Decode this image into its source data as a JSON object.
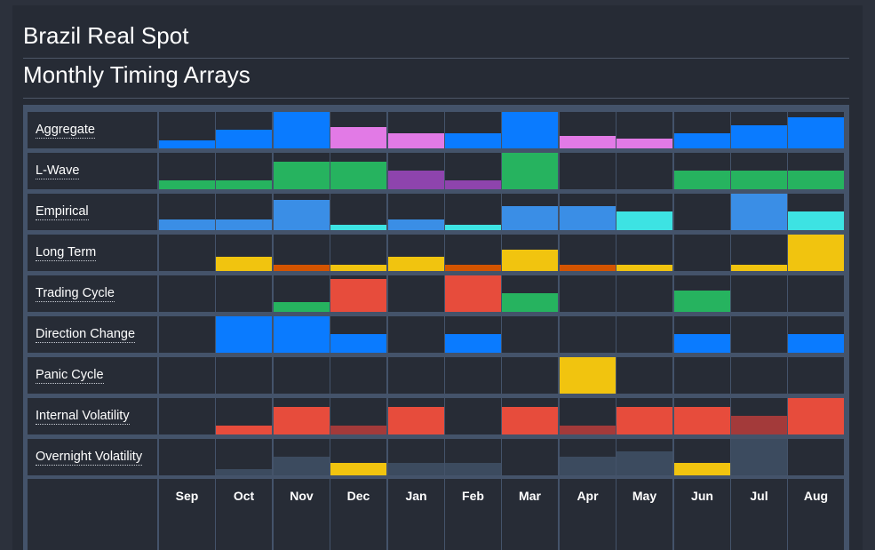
{
  "titles": {
    "instrument": "Brazil Real Spot",
    "report": "Monthly Timing Arrays"
  },
  "months": [
    "Sep",
    "Oct",
    "Nov",
    "Dec",
    "Jan",
    "Feb",
    "Mar",
    "Apr",
    "May",
    "Jun",
    "Jul",
    "Aug"
  ],
  "palette": {
    "blue": "#0a7bff",
    "pink": "#e27ae6",
    "green": "#26b35f",
    "purple": "#8e44ad",
    "sky": "#3a8ee6",
    "cyan": "#3de3e3",
    "yellow": "#f1c40f",
    "orange": "#d35400",
    "red": "#e74c3c",
    "darkred": "#a33a3a",
    "slate": "#3c4b5f"
  },
  "rows": [
    {
      "label": "Aggregate",
      "cells": [
        {
          "level": 0.22,
          "color": "blue"
        },
        {
          "level": 0.5,
          "color": "blue"
        },
        {
          "level": 1.0,
          "color": "blue"
        },
        {
          "level": 0.58,
          "color": "pink"
        },
        {
          "level": 0.42,
          "color": "pink"
        },
        {
          "level": 0.42,
          "color": "blue"
        },
        {
          "level": 1.0,
          "color": "blue"
        },
        {
          "level": 0.35,
          "color": "pink"
        },
        {
          "level": 0.28,
          "color": "pink"
        },
        {
          "level": 0.42,
          "color": "blue"
        },
        {
          "level": 0.63,
          "color": "blue"
        },
        {
          "level": 0.85,
          "color": "blue"
        }
      ]
    },
    {
      "label": "L-Wave",
      "cells": [
        {
          "level": 0.25,
          "color": "green"
        },
        {
          "level": 0.25,
          "color": "green"
        },
        {
          "level": 0.75,
          "color": "green"
        },
        {
          "level": 0.75,
          "color": "green"
        },
        {
          "level": 0.52,
          "color": "purple"
        },
        {
          "level": 0.25,
          "color": "purple"
        },
        {
          "level": 1.0,
          "color": "green"
        },
        {
          "level": 0,
          "color": "green"
        },
        {
          "level": 0,
          "color": "green"
        },
        {
          "level": 0.52,
          "color": "green"
        },
        {
          "level": 0.52,
          "color": "green"
        },
        {
          "level": 0.52,
          "color": "green"
        }
      ]
    },
    {
      "label": "Empirical",
      "cells": [
        {
          "level": 0.3,
          "color": "sky"
        },
        {
          "level": 0.3,
          "color": "sky"
        },
        {
          "level": 0.83,
          "color": "sky"
        },
        {
          "level": 0.15,
          "color": "cyan"
        },
        {
          "level": 0.3,
          "color": "sky"
        },
        {
          "level": 0.15,
          "color": "cyan"
        },
        {
          "level": 0.66,
          "color": "sky"
        },
        {
          "level": 0.66,
          "color": "sky"
        },
        {
          "level": 0.5,
          "color": "cyan"
        },
        {
          "level": 0,
          "color": "sky"
        },
        {
          "level": 1.0,
          "color": "sky"
        },
        {
          "level": 0.5,
          "color": "cyan"
        }
      ]
    },
    {
      "label": "Long Term",
      "cells": [
        {
          "level": 0,
          "color": "yellow"
        },
        {
          "level": 0.38,
          "color": "yellow"
        },
        {
          "level": 0.18,
          "color": "orange"
        },
        {
          "level": 0.18,
          "color": "yellow"
        },
        {
          "level": 0.38,
          "color": "yellow"
        },
        {
          "level": 0.18,
          "color": "orange"
        },
        {
          "level": 0.58,
          "color": "yellow"
        },
        {
          "level": 0.18,
          "color": "orange"
        },
        {
          "level": 0.18,
          "color": "yellow"
        },
        {
          "level": 0,
          "color": "yellow"
        },
        {
          "level": 0.18,
          "color": "yellow"
        },
        {
          "level": 1.0,
          "color": "yellow"
        }
      ]
    },
    {
      "label": "Trading Cycle",
      "cells": [
        {
          "level": 0,
          "color": "green"
        },
        {
          "level": 0,
          "color": "green"
        },
        {
          "level": 0.28,
          "color": "green"
        },
        {
          "level": 0.9,
          "color": "red"
        },
        {
          "level": 0,
          "color": "green"
        },
        {
          "level": 1.0,
          "color": "red"
        },
        {
          "level": 0.5,
          "color": "green"
        },
        {
          "level": 0,
          "color": "green"
        },
        {
          "level": 0,
          "color": "green"
        },
        {
          "level": 0.58,
          "color": "green"
        },
        {
          "level": 0,
          "color": "green"
        },
        {
          "level": 0,
          "color": "green"
        }
      ]
    },
    {
      "label": "Direction Change",
      "cells": [
        {
          "level": 0,
          "color": "blue"
        },
        {
          "level": 1.0,
          "color": "blue"
        },
        {
          "level": 1.0,
          "color": "blue"
        },
        {
          "level": 0.5,
          "color": "blue"
        },
        {
          "level": 0,
          "color": "blue"
        },
        {
          "level": 0.5,
          "color": "blue"
        },
        {
          "level": 0,
          "color": "blue"
        },
        {
          "level": 0,
          "color": "blue"
        },
        {
          "level": 0,
          "color": "blue"
        },
        {
          "level": 0.5,
          "color": "blue"
        },
        {
          "level": 0,
          "color": "blue"
        },
        {
          "level": 0.5,
          "color": "blue"
        }
      ]
    },
    {
      "label": "Panic Cycle",
      "cells": [
        {
          "level": 0,
          "color": "yellow"
        },
        {
          "level": 0,
          "color": "yellow"
        },
        {
          "level": 0,
          "color": "yellow"
        },
        {
          "level": 0,
          "color": "yellow"
        },
        {
          "level": 0,
          "color": "yellow"
        },
        {
          "level": 0,
          "color": "yellow"
        },
        {
          "level": 0,
          "color": "yellow"
        },
        {
          "level": 1.0,
          "color": "yellow"
        },
        {
          "level": 0,
          "color": "yellow"
        },
        {
          "level": 0,
          "color": "yellow"
        },
        {
          "level": 0,
          "color": "yellow"
        },
        {
          "level": 0,
          "color": "yellow"
        }
      ]
    },
    {
      "label": "Internal Volatility",
      "cells": [
        {
          "level": 0,
          "color": "red"
        },
        {
          "level": 0.25,
          "color": "red"
        },
        {
          "level": 0.75,
          "color": "red"
        },
        {
          "level": 0.25,
          "color": "darkred"
        },
        {
          "level": 0.75,
          "color": "red"
        },
        {
          "level": 0,
          "color": "red"
        },
        {
          "level": 0.75,
          "color": "red"
        },
        {
          "level": 0.25,
          "color": "darkred"
        },
        {
          "level": 0.75,
          "color": "red"
        },
        {
          "level": 0.75,
          "color": "red"
        },
        {
          "level": 0.5,
          "color": "darkred"
        },
        {
          "level": 1.0,
          "color": "red"
        }
      ]
    },
    {
      "label": "Overnight Volatility",
      "cells": [
        {
          "level": 0,
          "color": "slate"
        },
        {
          "level": 0.17,
          "color": "slate"
        },
        {
          "level": 0.5,
          "color": "slate"
        },
        {
          "level": 0.33,
          "color": "yellow"
        },
        {
          "level": 0.33,
          "color": "slate"
        },
        {
          "level": 0.33,
          "color": "slate"
        },
        {
          "level": 0,
          "color": "slate"
        },
        {
          "level": 0.5,
          "color": "slate"
        },
        {
          "level": 0.67,
          "color": "slate"
        },
        {
          "level": 0.33,
          "color": "yellow"
        },
        {
          "level": 1.0,
          "color": "slate"
        },
        {
          "level": 0,
          "color": "slate"
        }
      ]
    }
  ]
}
